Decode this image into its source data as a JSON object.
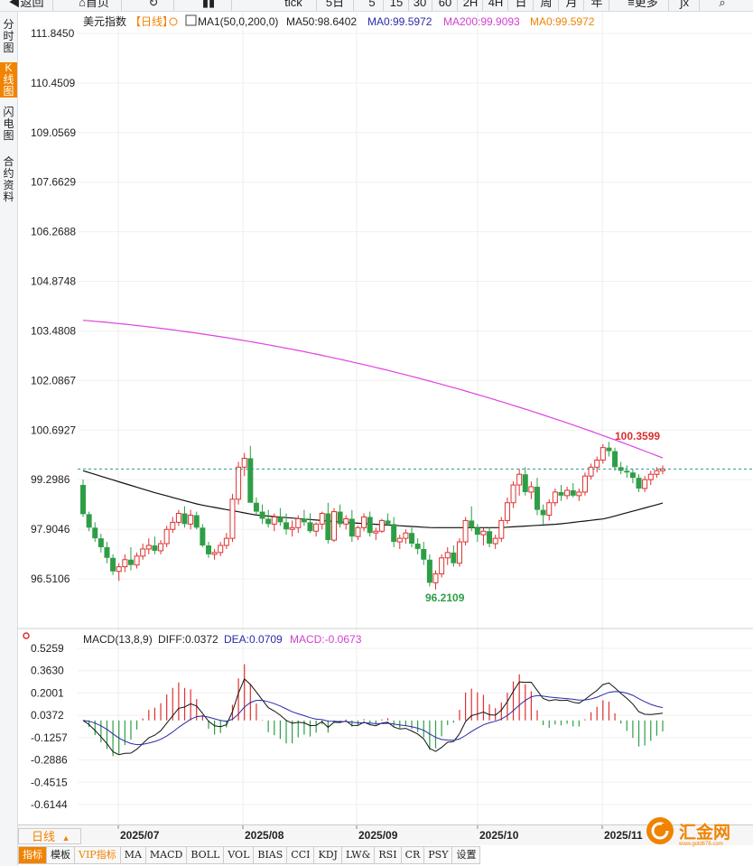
{
  "toolbar": {
    "items": [
      {
        "label": "返回",
        "icon": "back-arrow-icon"
      },
      {
        "label": "首页",
        "icon": "home-icon"
      },
      {
        "label": "",
        "icon": "refresh-icon"
      },
      {
        "label": "",
        "icon": "candlestick-icon"
      },
      {
        "label": "tick"
      },
      {
        "label": "5日"
      },
      {
        "label": "5"
      },
      {
        "label": "15"
      },
      {
        "label": "30"
      },
      {
        "label": "60"
      },
      {
        "label": "2H"
      },
      {
        "label": "4H"
      },
      {
        "label": "日"
      },
      {
        "label": "周"
      },
      {
        "label": "月"
      },
      {
        "label": "年"
      },
      {
        "label": "更多",
        "icon": "menu-icon"
      },
      {
        "label": "",
        "icon": "formula-icon"
      },
      {
        "label": "",
        "icon": "zoom-icon"
      }
    ]
  },
  "sidebar": {
    "tabs": [
      {
        "label": "分时图",
        "active": false
      },
      {
        "label": "K线图",
        "active": true
      },
      {
        "label": "闪电图",
        "active": false
      },
      {
        "label": "合约资料",
        "active": false
      }
    ]
  },
  "main_legend": {
    "symbol": "美元指数",
    "period": "【日线】",
    "ma1": "MA1(50,0,200,0)",
    "ma50": "MA50:98.6402",
    "ma0a": "MA0:99.5972",
    "ma200": "MA200:99.9093",
    "ma0b": "MA0:99.5972"
  },
  "macd_legend": {
    "name": "MACD(13,8,9)",
    "diff": "DIFF:0.0372",
    "dea": "DEA:0.0709",
    "macd": "MACD:-0.0673"
  },
  "annotations": {
    "high": "100.3599",
    "low": "96.2109"
  },
  "price_axis": [
    "111.8450",
    "110.4509",
    "109.0569",
    "107.6629",
    "106.2688",
    "104.8748",
    "103.4808",
    "102.0867",
    "100.6927",
    "99.2986",
    "97.9046",
    "96.5106"
  ],
  "macd_axis": [
    "0.5259",
    "0.3630",
    "0.2001",
    "0.0372",
    "-0.1257",
    "-0.2886",
    "-0.4515",
    "-0.6144"
  ],
  "date_axis": [
    "2025/07",
    "2025/08",
    "2025/09",
    "2025/10",
    "2025/11"
  ],
  "period_button": "日线",
  "indicator_tabs": [
    {
      "label": "指标",
      "active": true
    },
    {
      "label": "模板"
    },
    {
      "label": "VIP指标",
      "vip": true
    },
    {
      "label": "MA"
    },
    {
      "label": "MACD"
    },
    {
      "label": "BOLL"
    },
    {
      "label": "VOL"
    },
    {
      "label": "BIAS"
    },
    {
      "label": "CCI"
    },
    {
      "label": "KDJ"
    },
    {
      "label": "LW&"
    },
    {
      "label": "RSI"
    },
    {
      "label": "CR"
    },
    {
      "label": "PSY"
    },
    {
      "label": "设置"
    }
  ],
  "logo_text": "汇金网",
  "logo_sub": "www.gold678.com",
  "colors": {
    "up": "#e03030",
    "down": "#2e9e46",
    "ma200": "#e040e0",
    "ma50": "#111111",
    "diff": "#111111",
    "dea": "#2a2aaa",
    "accent": "#f08300"
  },
  "chart_data": {
    "type": "candlestick",
    "price_range": [
      95.9,
      112.0
    ],
    "last_price": 99.5972,
    "ma200_start": 103.78,
    "ma200_end": 99.909,
    "ma50_start": 99.55,
    "ma50_end": 98.64,
    "macd_range": [
      -0.7,
      0.58
    ],
    "candles_ohlc": [
      [
        99.15,
        99.3,
        98.25,
        98.33
      ],
      [
        98.33,
        98.4,
        97.85,
        97.95
      ],
      [
        97.95,
        98.1,
        97.55,
        97.65
      ],
      [
        97.65,
        97.78,
        97.25,
        97.4
      ],
      [
        97.4,
        97.55,
        96.95,
        97.1
      ],
      [
        97.1,
        97.2,
        96.62,
        96.72
      ],
      [
        96.72,
        96.95,
        96.45,
        96.85
      ],
      [
        96.85,
        97.2,
        96.7,
        97.05
      ],
      [
        97.05,
        97.4,
        96.75,
        96.9
      ],
      [
        96.9,
        97.25,
        96.8,
        97.15
      ],
      [
        97.15,
        97.5,
        97.05,
        97.35
      ],
      [
        97.35,
        97.65,
        97.2,
        97.45
      ],
      [
        97.45,
        97.7,
        97.2,
        97.3
      ],
      [
        97.3,
        97.6,
        97.2,
        97.5
      ],
      [
        97.5,
        98.0,
        97.4,
        97.9
      ],
      [
        97.9,
        98.25,
        97.8,
        98.1
      ],
      [
        98.1,
        98.45,
        98.0,
        98.35
      ],
      [
        98.35,
        98.55,
        97.95,
        98.05
      ],
      [
        98.05,
        98.45,
        97.9,
        98.3
      ],
      [
        98.3,
        98.4,
        97.9,
        97.95
      ],
      [
        97.95,
        98.05,
        97.4,
        97.45
      ],
      [
        97.45,
        97.55,
        97.1,
        97.2
      ],
      [
        97.2,
        97.35,
        97.05,
        97.25
      ],
      [
        97.25,
        97.55,
        97.15,
        97.45
      ],
      [
        97.45,
        97.8,
        97.35,
        97.65
      ],
      [
        97.65,
        98.9,
        97.55,
        98.75
      ],
      [
        98.75,
        99.8,
        98.6,
        99.65
      ],
      [
        99.65,
        100.05,
        99.4,
        99.9
      ],
      [
        99.9,
        100.25,
        99.1,
        98.65
      ],
      [
        98.65,
        98.8,
        98.3,
        98.4
      ],
      [
        98.4,
        98.6,
        98.05,
        98.2
      ],
      [
        98.2,
        98.45,
        97.95,
        98.05
      ],
      [
        98.05,
        98.35,
        97.85,
        98.25
      ],
      [
        98.25,
        98.5,
        98.0,
        98.1
      ],
      [
        98.1,
        98.35,
        97.75,
        97.9
      ],
      [
        97.9,
        98.15,
        97.7,
        97.95
      ],
      [
        97.95,
        98.3,
        97.8,
        98.2
      ],
      [
        98.2,
        98.45,
        98.0,
        98.1
      ],
      [
        98.1,
        98.35,
        97.8,
        97.85
      ],
      [
        97.85,
        98.1,
        97.7,
        98.05
      ],
      [
        98.05,
        98.4,
        97.9,
        98.35
      ],
      [
        98.35,
        98.65,
        97.5,
        97.6
      ],
      [
        97.6,
        98.5,
        97.55,
        98.4
      ],
      [
        98.4,
        98.6,
        97.95,
        98.05
      ],
      [
        98.05,
        98.3,
        97.9,
        98.2
      ],
      [
        98.2,
        98.45,
        97.55,
        97.7
      ],
      [
        97.7,
        98.0,
        97.6,
        97.95
      ],
      [
        97.95,
        98.35,
        97.85,
        98.25
      ],
      [
        98.25,
        98.4,
        97.7,
        97.8
      ],
      [
        97.8,
        97.95,
        97.6,
        97.85
      ],
      [
        97.85,
        98.2,
        97.8,
        98.15
      ],
      [
        98.15,
        98.35,
        98.0,
        98.05
      ],
      [
        98.05,
        98.25,
        97.4,
        97.55
      ],
      [
        97.55,
        97.75,
        97.35,
        97.65
      ],
      [
        97.65,
        97.9,
        97.5,
        97.8
      ],
      [
        97.8,
        97.95,
        97.4,
        97.5
      ],
      [
        97.5,
        97.65,
        97.2,
        97.35
      ],
      [
        97.35,
        97.55,
        96.9,
        97.05
      ],
      [
        97.05,
        97.2,
        96.3,
        96.4
      ],
      [
        96.4,
        96.75,
        96.21,
        96.65
      ],
      [
        96.65,
        97.2,
        96.55,
        97.1
      ],
      [
        97.1,
        97.4,
        96.9,
        97.25
      ],
      [
        97.25,
        97.45,
        96.85,
        96.95
      ],
      [
        96.95,
        97.65,
        96.85,
        97.55
      ],
      [
        97.55,
        98.25,
        97.45,
        98.15
      ],
      [
        98.15,
        98.55,
        97.85,
        97.95
      ],
      [
        97.95,
        98.05,
        97.55,
        97.75
      ],
      [
        97.75,
        97.95,
        97.45,
        97.85
      ],
      [
        97.85,
        97.95,
        97.4,
        97.5
      ],
      [
        97.5,
        97.75,
        97.35,
        97.65
      ],
      [
        97.65,
        98.25,
        97.55,
        98.15
      ],
      [
        98.15,
        98.8,
        98.05,
        98.65
      ],
      [
        98.65,
        99.25,
        98.5,
        99.15
      ],
      [
        99.15,
        99.6,
        98.85,
        99.45
      ],
      [
        99.45,
        99.65,
        98.85,
        98.95
      ],
      [
        98.95,
        99.25,
        98.75,
        99.1
      ],
      [
        99.1,
        99.35,
        98.3,
        98.45
      ],
      [
        98.45,
        98.6,
        98.05,
        98.3
      ],
      [
        98.3,
        98.75,
        98.15,
        98.65
      ],
      [
        98.65,
        99.05,
        98.55,
        98.95
      ],
      [
        98.95,
        99.15,
        98.7,
        98.85
      ],
      [
        98.85,
        99.1,
        98.75,
        99.0
      ],
      [
        99.0,
        99.2,
        98.8,
        98.85
      ],
      [
        98.85,
        99.05,
        98.7,
        98.95
      ],
      [
        98.95,
        99.5,
        98.85,
        99.4
      ],
      [
        99.4,
        99.75,
        99.3,
        99.65
      ],
      [
        99.65,
        99.95,
        99.5,
        99.85
      ],
      [
        99.85,
        100.3,
        99.75,
        100.2
      ],
      [
        100.2,
        100.36,
        99.95,
        100.1
      ],
      [
        100.1,
        100.2,
        99.55,
        99.65
      ],
      [
        99.65,
        99.8,
        99.45,
        99.55
      ],
      [
        99.55,
        99.7,
        99.35,
        99.5
      ],
      [
        99.5,
        99.6,
        99.2,
        99.35
      ],
      [
        99.35,
        99.45,
        98.95,
        99.05
      ],
      [
        99.05,
        99.4,
        98.95,
        99.3
      ],
      [
        99.3,
        99.55,
        99.15,
        99.45
      ],
      [
        99.45,
        99.65,
        99.35,
        99.55
      ],
      [
        99.55,
        99.7,
        99.45,
        99.6
      ]
    ]
  }
}
